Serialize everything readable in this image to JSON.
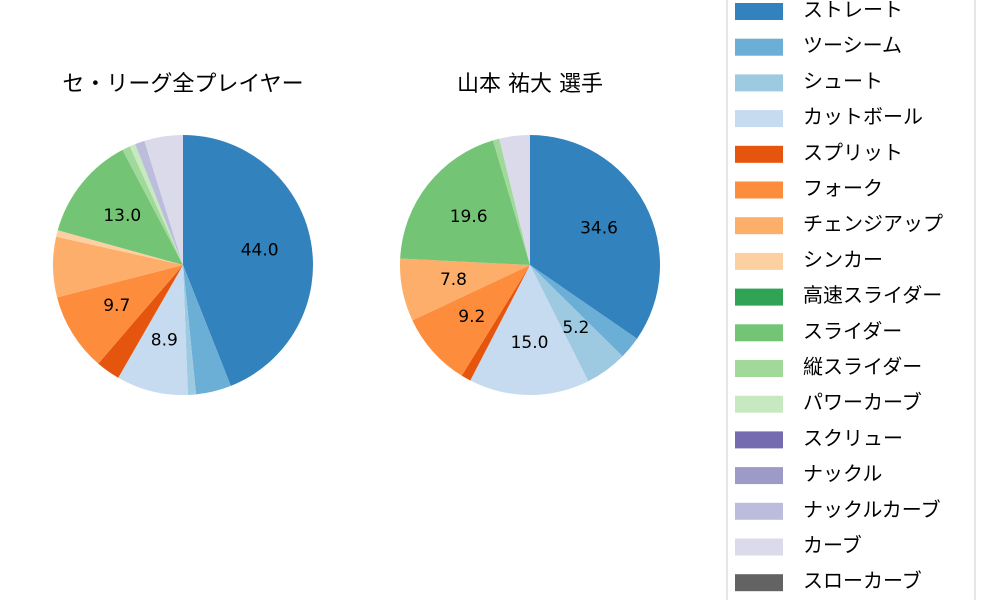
{
  "chart_data": [
    {
      "type": "pie",
      "title": "セ・リーグ全プレイヤー",
      "categories": [
        "ストレート",
        "ツーシーム",
        "シュート",
        "カットボール",
        "スプリット",
        "フォーク",
        "チェンジアップ",
        "シンカー",
        "高速スライダー",
        "スライダー",
        "縦スライダー",
        "パワーカーブ",
        "スクリュー",
        "ナックル",
        "ナックルカーブ",
        "カーブ",
        "スローカーブ"
      ],
      "values": [
        44.0,
        4.4,
        1.0,
        8.9,
        3.0,
        9.7,
        7.5,
        0.8,
        0,
        13.0,
        1.0,
        0.7,
        0,
        0,
        1.2,
        4.8,
        0
      ],
      "value_labels": [
        "44.0",
        null,
        null,
        "8.9",
        null,
        "9.7",
        null,
        null,
        null,
        "13.0",
        null,
        null,
        null,
        null,
        null,
        null,
        null
      ],
      "colors": [
        "#3182bd",
        "#6baed6",
        "#9ecae1",
        "#c6dbef",
        "#e6550d",
        "#fd8d3c",
        "#fdae6b",
        "#fdd0a2",
        "#31a354",
        "#74c476",
        "#a1d99b",
        "#c7e9c0",
        "#756bb1",
        "#9e9ac8",
        "#bcbddc",
        "#dadaeb",
        "#636363"
      ]
    },
    {
      "type": "pie",
      "title": "山本 祐大  選手",
      "categories": [
        "ストレート",
        "ツーシーム",
        "シュート",
        "カットボール",
        "スプリット",
        "フォーク",
        "チェンジアップ",
        "シンカー",
        "高速スライダー",
        "スライダー",
        "縦スライダー",
        "パワーカーブ",
        "スクリュー",
        "ナックル",
        "ナックルカーブ",
        "カーブ",
        "スローカーブ"
      ],
      "values": [
        34.6,
        2.8,
        5.2,
        15.0,
        1.2,
        9.2,
        7.8,
        0,
        0,
        19.6,
        0.8,
        0,
        0,
        0,
        0,
        3.8,
        0
      ],
      "value_labels": [
        "34.6",
        null,
        "5.2",
        "15.0",
        null,
        "9.2",
        "7.8",
        null,
        null,
        "19.6",
        null,
        null,
        null,
        null,
        null,
        null,
        null
      ],
      "colors": [
        "#3182bd",
        "#6baed6",
        "#9ecae1",
        "#c6dbef",
        "#e6550d",
        "#fd8d3c",
        "#fdae6b",
        "#fdd0a2",
        "#31a354",
        "#74c476",
        "#a1d99b",
        "#c7e9c0",
        "#756bb1",
        "#9e9ac8",
        "#bcbddc",
        "#dadaeb",
        "#636363"
      ]
    }
  ]
}
